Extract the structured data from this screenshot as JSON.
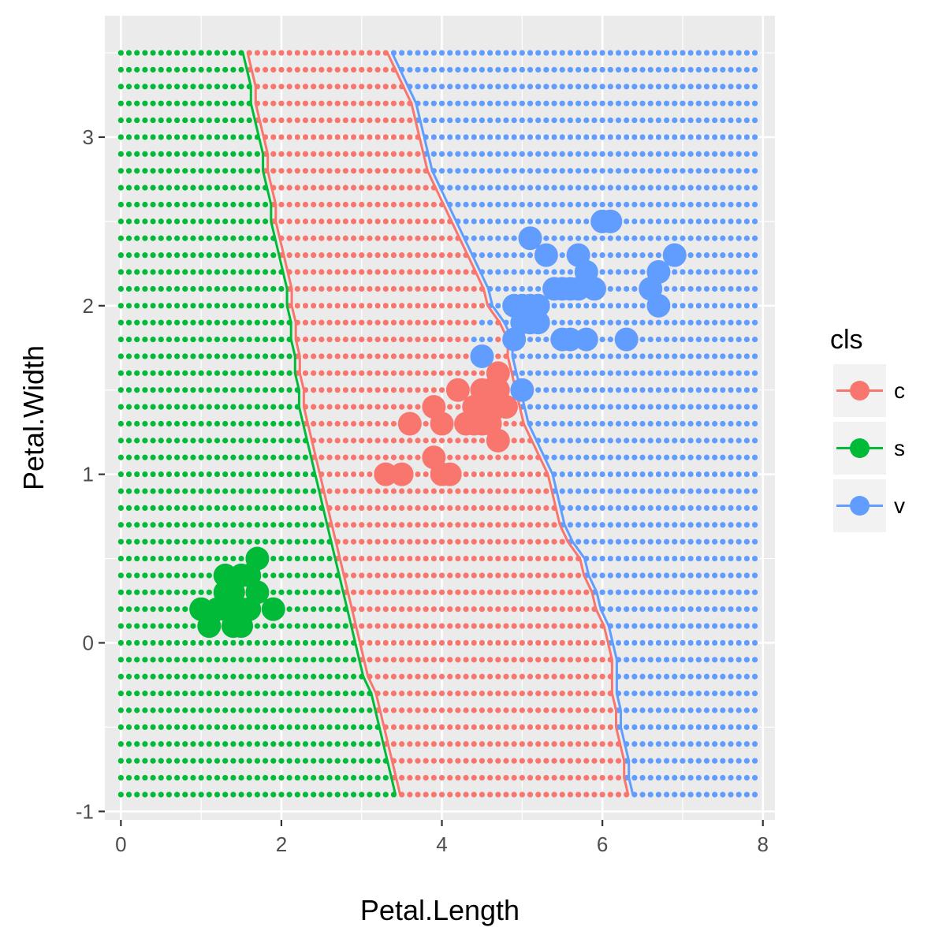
{
  "chart_data": {
    "type": "scatter",
    "xlabel": "Petal.Length",
    "ylabel": "Petal.Width",
    "xlim": [
      -0.2,
      8.15
    ],
    "ylim": [
      -1.05,
      3.72
    ],
    "x_ticks": [
      0,
      2,
      4,
      6,
      8
    ],
    "y_ticks": [
      -1,
      0,
      1,
      2,
      3
    ],
    "x_tick_labels": [
      "0",
      "2",
      "4",
      "6",
      "8"
    ],
    "y_tick_labels": [
      "-1",
      "0",
      "1",
      "2",
      "3"
    ],
    "grid": true,
    "legend": {
      "title": "cls",
      "position": "right",
      "entries": [
        {
          "label": "c",
          "color": "#F8766D"
        },
        {
          "label": "s",
          "color": "#00BA38"
        },
        {
          "label": "v",
          "color": "#619CFF"
        }
      ]
    },
    "prediction_grid": {
      "x_start": 0,
      "x_step": 0.1,
      "x_count": 80,
      "y_start": -0.9,
      "y_step": 0.1,
      "y_count": 45,
      "boundary_s_c": [
        [
          -0.9,
          3.45
        ],
        [
          -0.8,
          3.4
        ],
        [
          -0.7,
          3.35
        ],
        [
          -0.6,
          3.3
        ],
        [
          -0.5,
          3.25
        ],
        [
          -0.4,
          3.2
        ],
        [
          -0.3,
          3.15
        ],
        [
          -0.2,
          3.05
        ],
        [
          -0.1,
          3.0
        ],
        [
          0.0,
          2.95
        ],
        [
          0.1,
          2.9
        ],
        [
          0.2,
          2.85
        ],
        [
          0.3,
          2.8
        ],
        [
          0.4,
          2.75
        ],
        [
          0.5,
          2.7
        ],
        [
          0.6,
          2.65
        ],
        [
          0.7,
          2.6
        ],
        [
          0.8,
          2.55
        ],
        [
          0.9,
          2.5
        ],
        [
          1.0,
          2.45
        ],
        [
          1.1,
          2.4
        ],
        [
          1.2,
          2.35
        ],
        [
          1.3,
          2.3
        ],
        [
          1.4,
          2.25
        ],
        [
          1.5,
          2.25
        ],
        [
          1.6,
          2.2
        ],
        [
          1.7,
          2.2
        ],
        [
          1.8,
          2.15
        ],
        [
          1.9,
          2.15
        ],
        [
          2.0,
          2.1
        ],
        [
          2.1,
          2.1
        ],
        [
          2.2,
          2.05
        ],
        [
          2.3,
          2.0
        ],
        [
          2.4,
          1.95
        ],
        [
          2.5,
          1.9
        ],
        [
          2.6,
          1.9
        ],
        [
          2.7,
          1.85
        ],
        [
          2.8,
          1.8
        ],
        [
          2.9,
          1.8
        ],
        [
          3.0,
          1.75
        ],
        [
          3.1,
          1.7
        ],
        [
          3.2,
          1.65
        ],
        [
          3.3,
          1.65
        ],
        [
          3.4,
          1.6
        ],
        [
          3.5,
          1.55
        ]
      ],
      "boundary_c_v": [
        [
          -0.9,
          6.35
        ],
        [
          -0.8,
          6.3
        ],
        [
          -0.7,
          6.3
        ],
        [
          -0.6,
          6.25
        ],
        [
          -0.5,
          6.2
        ],
        [
          -0.4,
          6.2
        ],
        [
          -0.3,
          6.15
        ],
        [
          -0.2,
          6.15
        ],
        [
          -0.1,
          6.15
        ],
        [
          0.0,
          6.1
        ],
        [
          0.1,
          6.05
        ],
        [
          0.2,
          5.95
        ],
        [
          0.3,
          5.9
        ],
        [
          0.4,
          5.8
        ],
        [
          0.5,
          5.75
        ],
        [
          0.6,
          5.6
        ],
        [
          0.7,
          5.5
        ],
        [
          0.8,
          5.45
        ],
        [
          0.9,
          5.4
        ],
        [
          1.0,
          5.35
        ],
        [
          1.1,
          5.25
        ],
        [
          1.2,
          5.15
        ],
        [
          1.3,
          5.05
        ],
        [
          1.4,
          5.0
        ],
        [
          1.5,
          4.95
        ],
        [
          1.6,
          4.9
        ],
        [
          1.7,
          4.85
        ],
        [
          1.8,
          4.85
        ],
        [
          1.9,
          4.75
        ],
        [
          2.0,
          4.6
        ],
        [
          2.1,
          4.55
        ],
        [
          2.2,
          4.45
        ],
        [
          2.3,
          4.35
        ],
        [
          2.4,
          4.25
        ],
        [
          2.5,
          4.15
        ],
        [
          2.6,
          4.05
        ],
        [
          2.7,
          3.95
        ],
        [
          2.8,
          3.85
        ],
        [
          2.9,
          3.8
        ],
        [
          3.0,
          3.75
        ],
        [
          3.1,
          3.7
        ],
        [
          3.2,
          3.65
        ],
        [
          3.3,
          3.55
        ],
        [
          3.4,
          3.45
        ],
        [
          3.5,
          3.35
        ]
      ]
    },
    "series": [
      {
        "name": "c",
        "color": "#F8766D",
        "points": [
          [
            3.3,
            1.0
          ],
          [
            3.5,
            1.0
          ],
          [
            3.6,
            1.3
          ],
          [
            3.9,
            1.4
          ],
          [
            3.9,
            1.1
          ],
          [
            4.0,
            1.0
          ],
          [
            4.0,
            1.3
          ],
          [
            4.1,
            1.0
          ],
          [
            4.2,
            1.5
          ],
          [
            4.3,
            1.3
          ],
          [
            4.4,
            1.4
          ],
          [
            4.4,
            1.3
          ],
          [
            4.5,
            1.5
          ],
          [
            4.5,
            1.3
          ],
          [
            4.6,
            1.5
          ],
          [
            4.6,
            1.4
          ],
          [
            4.7,
            1.4
          ],
          [
            4.7,
            1.6
          ],
          [
            4.7,
            1.2
          ],
          [
            4.8,
            1.4
          ],
          [
            4.6,
            1.3
          ],
          [
            4.7,
            1.5
          ]
        ]
      },
      {
        "name": "s",
        "color": "#00BA38",
        "points": [
          [
            1.0,
            0.2
          ],
          [
            1.1,
            0.1
          ],
          [
            1.2,
            0.2
          ],
          [
            1.3,
            0.4
          ],
          [
            1.3,
            0.3
          ],
          [
            1.4,
            0.2
          ],
          [
            1.4,
            0.3
          ],
          [
            1.5,
            0.1
          ],
          [
            1.5,
            0.2
          ],
          [
            1.5,
            0.4
          ],
          [
            1.6,
            0.2
          ],
          [
            1.6,
            0.4
          ],
          [
            1.7,
            0.5
          ],
          [
            1.7,
            0.3
          ],
          [
            1.9,
            0.2
          ],
          [
            1.4,
            0.1
          ],
          [
            1.3,
            0.2
          ]
        ]
      },
      {
        "name": "v",
        "color": "#619CFF",
        "points": [
          [
            4.5,
            1.7
          ],
          [
            4.9,
            1.8
          ],
          [
            4.9,
            2.0
          ],
          [
            5.0,
            1.5
          ],
          [
            5.0,
            2.0
          ],
          [
            5.1,
            2.4
          ],
          [
            5.1,
            1.9
          ],
          [
            5.1,
            2.0
          ],
          [
            5.2,
            2.0
          ],
          [
            5.2,
            1.9
          ],
          [
            5.3,
            2.3
          ],
          [
            5.4,
            2.1
          ],
          [
            5.5,
            1.8
          ],
          [
            5.5,
            2.1
          ],
          [
            5.6,
            1.8
          ],
          [
            5.7,
            2.3
          ],
          [
            5.7,
            2.1
          ],
          [
            5.8,
            2.2
          ],
          [
            5.8,
            1.8
          ],
          [
            5.9,
            2.1
          ],
          [
            5.6,
            2.1
          ],
          [
            6.0,
            2.5
          ],
          [
            6.1,
            2.5
          ],
          [
            6.3,
            1.8
          ],
          [
            6.6,
            2.1
          ],
          [
            6.7,
            2.2
          ],
          [
            6.7,
            2.0
          ],
          [
            6.9,
            2.3
          ],
          [
            5.0,
            1.9
          ]
        ]
      }
    ]
  }
}
